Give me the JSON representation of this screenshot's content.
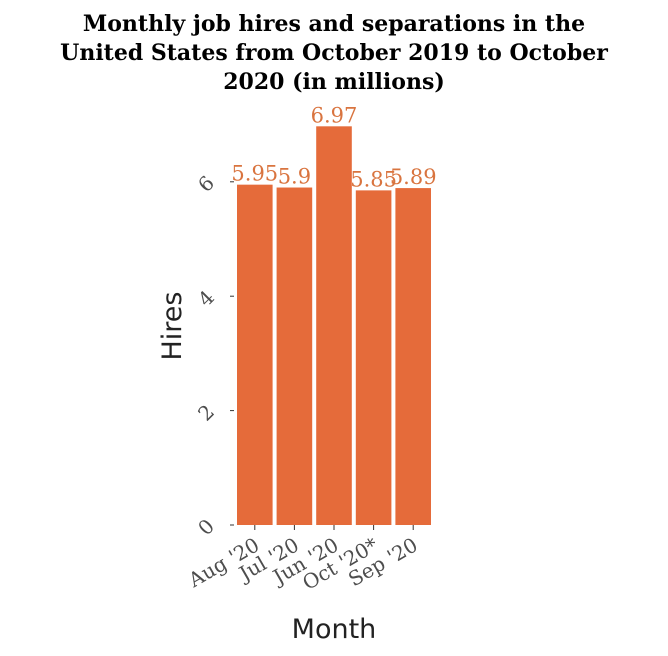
{
  "chart_data": {
    "type": "bar",
    "title_lines": [
      "Monthly job hires and separations in the",
      "United States from October 2019 to October",
      "2020 (in millions)"
    ],
    "xlabel": "Month",
    "ylabel": "Hires",
    "categories": [
      "Aug '20",
      "Jul '20",
      "Jun '20",
      "Oct '20*",
      "Sep '20"
    ],
    "values": [
      5.95,
      5.9,
      6.97,
      5.85,
      5.89
    ],
    "data_labels": [
      "5.95",
      "5.9",
      "6.97",
      "5.85",
      "5.89"
    ],
    "yticks": [
      0,
      2,
      4,
      6
    ],
    "ylim": [
      0,
      7.2
    ],
    "bar_color": "#e56b3a",
    "label_color": "#d9743f",
    "grid": false,
    "legend": "none"
  }
}
